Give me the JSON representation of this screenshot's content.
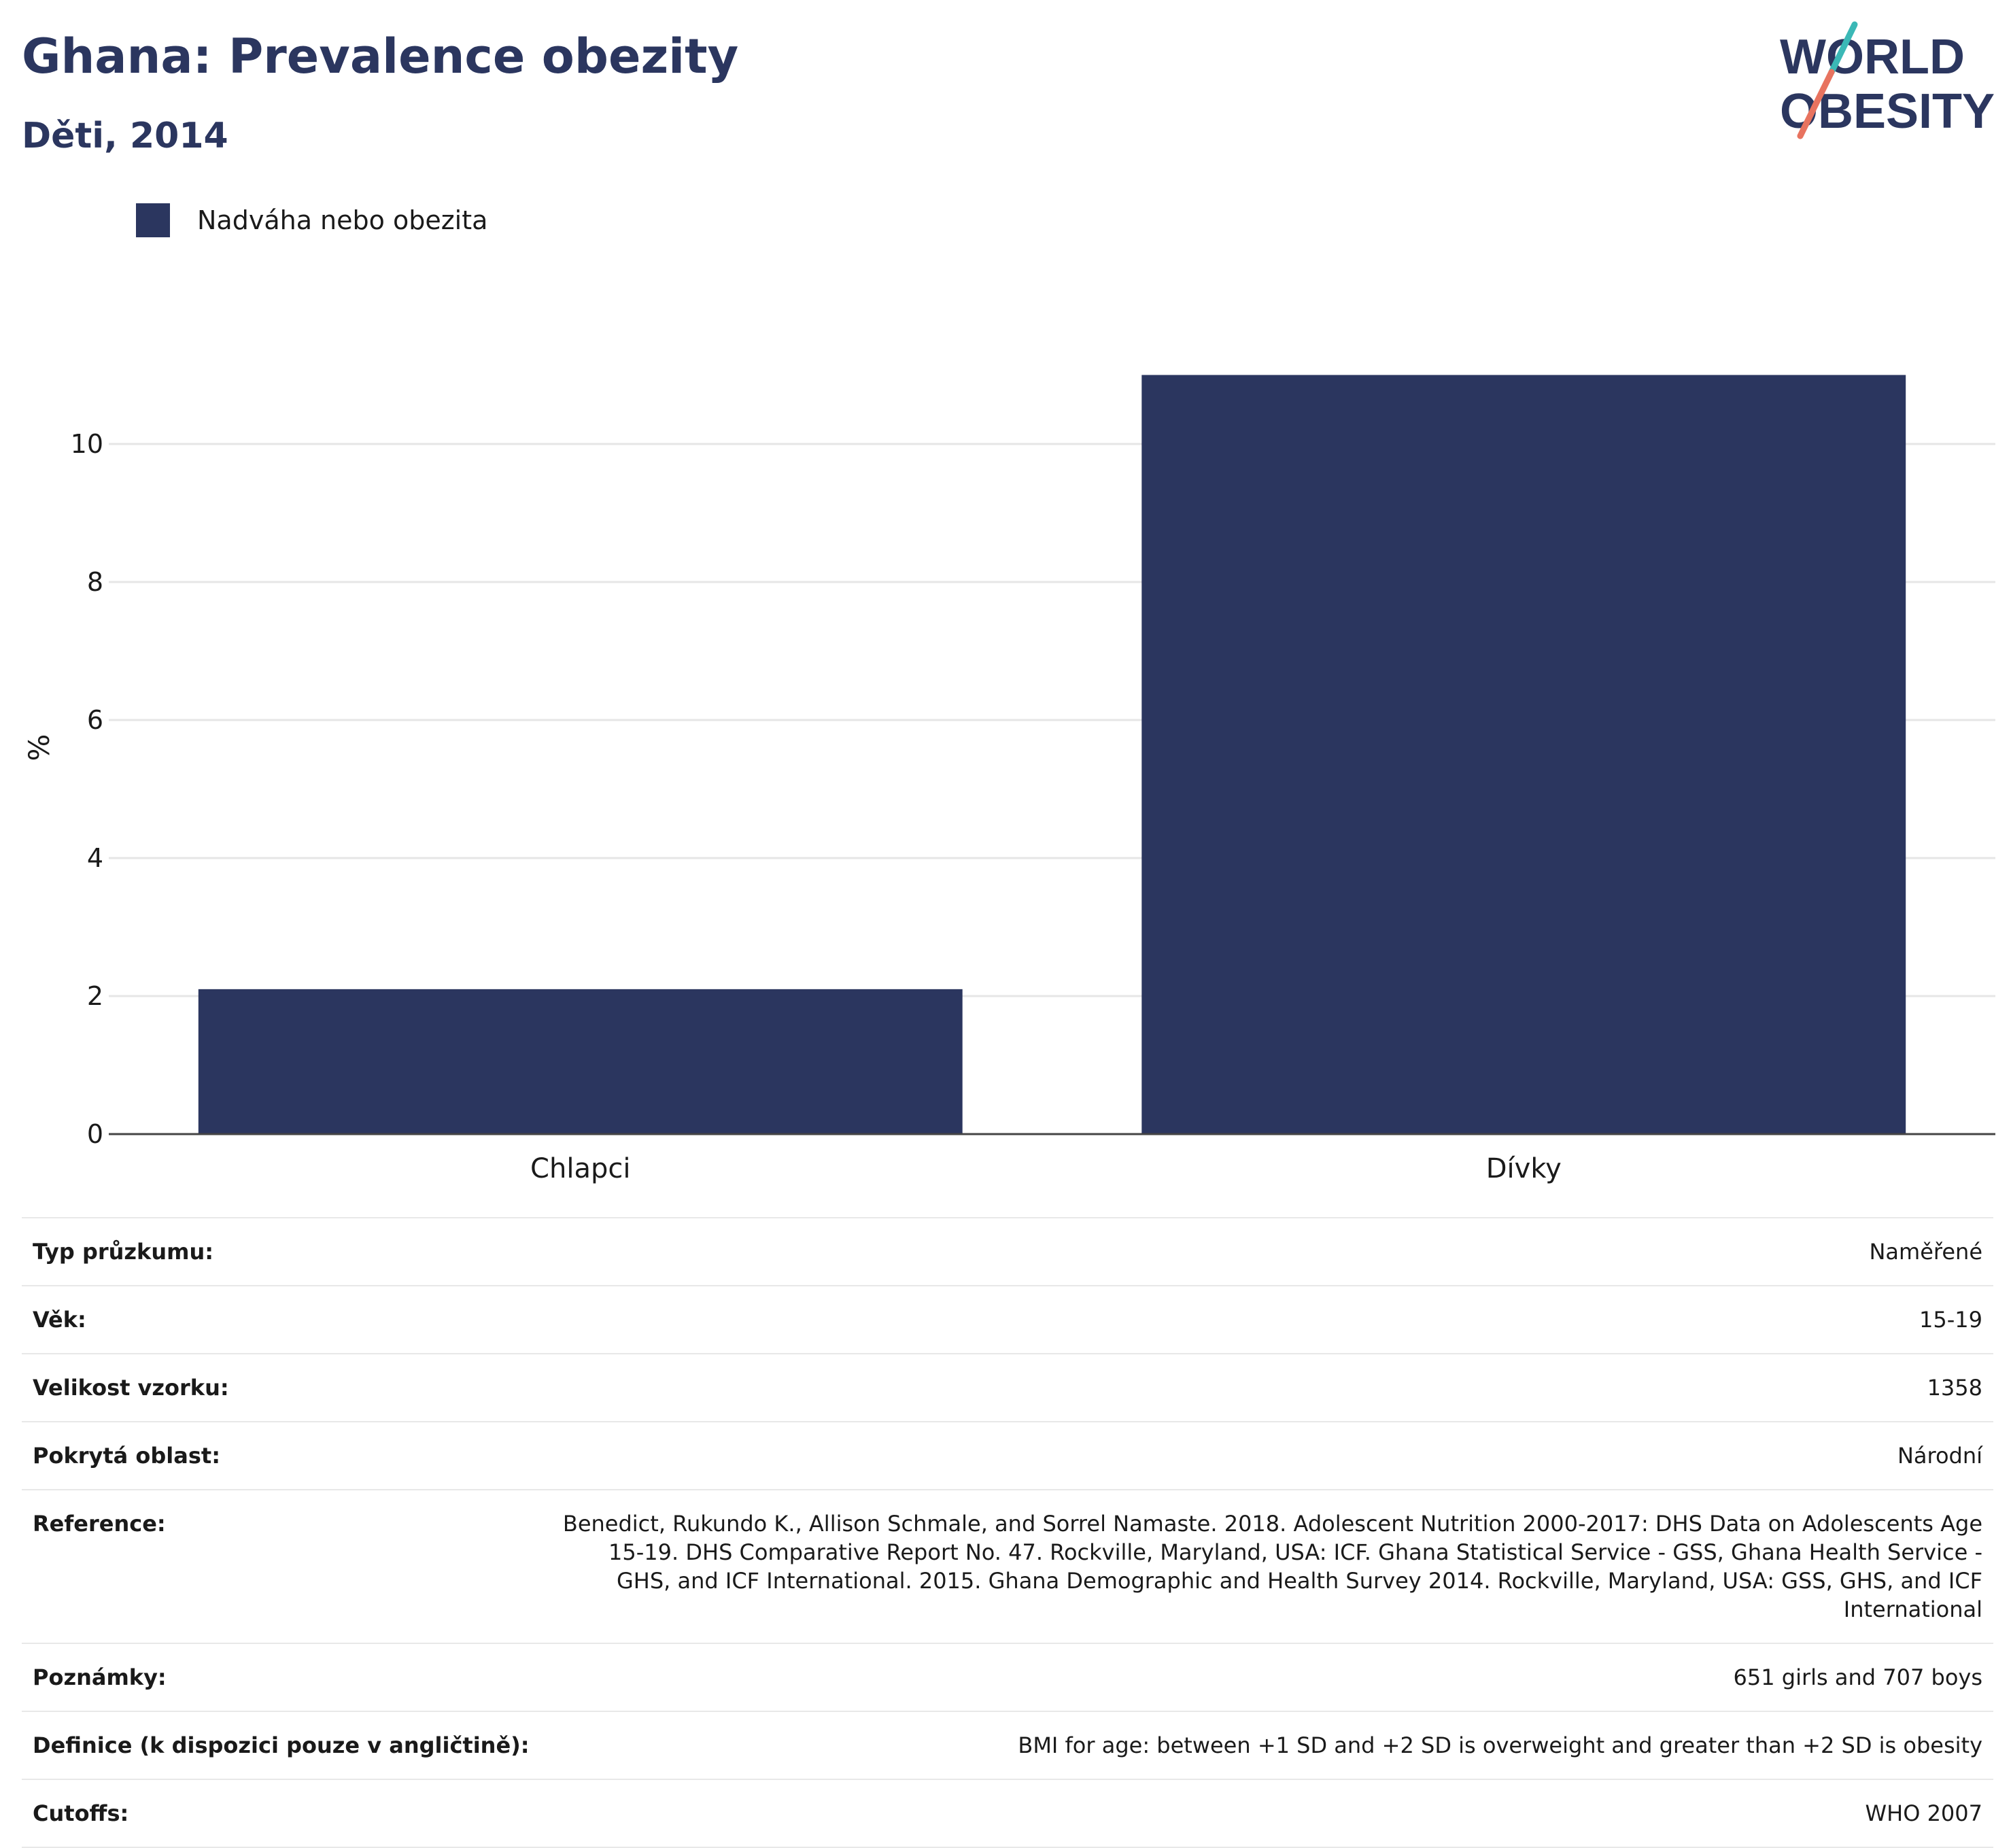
{
  "header": {
    "title": "Ghana: Prevalence obezity",
    "subtitle": "Děti, 2014"
  },
  "logo": {
    "line1": "WORLD",
    "line2": "OBESITY"
  },
  "colors": {
    "bar": "#2b365f",
    "grid": "#e6e6e6",
    "logo_teal": "#3bb8b6",
    "logo_coral": "#e8735f"
  },
  "chart_data": {
    "type": "bar",
    "categories": [
      "Chlapci",
      "Dívky"
    ],
    "series": [
      {
        "name": "Nadváha nebo obezita",
        "values": [
          2.1,
          11.0
        ],
        "color": "#2b365f"
      }
    ],
    "ylabel": "%",
    "ylim": [
      0,
      12
    ],
    "yticks": [
      0,
      2,
      4,
      6,
      8,
      10
    ],
    "grid": true,
    "legend": "top-left"
  },
  "info_rows": [
    {
      "key": "Typ průzkumu:",
      "value": "Naměřené"
    },
    {
      "key": "Věk:",
      "value": "15-19"
    },
    {
      "key": "Velikost vzorku:",
      "value": "1358"
    },
    {
      "key": "Pokrytá oblast:",
      "value": "Národní"
    },
    {
      "key": "Reference:",
      "value": "Benedict, Rukundo K., Allison Schmale, and Sorrel Namaste. 2018. Adolescent Nutrition 2000-2017: DHS Data on Adolescents Age 15-19. DHS Comparative Report No. 47. Rockville, Maryland, USA: ICF. Ghana Statistical Service - GSS, Ghana Health Service - GHS, and ICF International. 2015. Ghana Demographic and Health Survey 2014. Rockville, Maryland, USA: GSS, GHS, and ICF International"
    },
    {
      "key": "Poznámky:",
      "value": "651 girls and 707 boys"
    },
    {
      "key": "Definice (k dispozici pouze v angličtině):",
      "value": "BMI for age: between +1 SD and +2 SD is overweight and greater than +2 SD is obesity"
    },
    {
      "key": "Cutoffs:",
      "value": "WHO 2007"
    }
  ]
}
